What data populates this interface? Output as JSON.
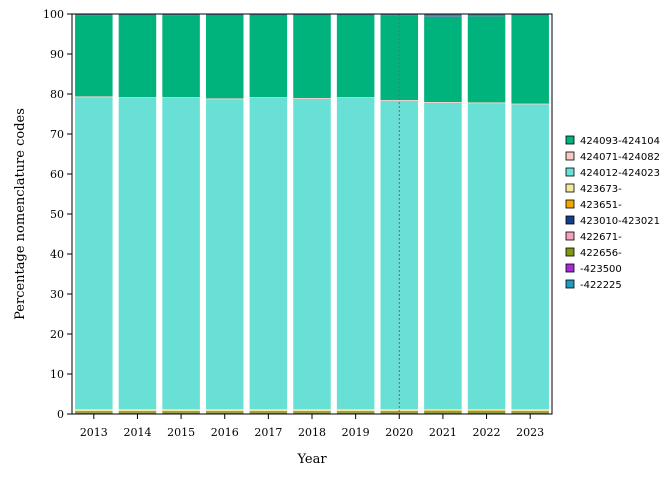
{
  "chart_data": {
    "type": "bar",
    "stacked": true,
    "xlabel": "Year",
    "ylabel": "Percentage nomenclature codes",
    "ylim": [
      0,
      100
    ],
    "yticks": [
      0,
      10,
      20,
      30,
      40,
      50,
      60,
      70,
      80,
      90,
      100
    ],
    "categories": [
      "2013",
      "2014",
      "2015",
      "2016",
      "2017",
      "2018",
      "2019",
      "2020",
      "2021",
      "2022",
      "2023"
    ],
    "reference_line": {
      "category": "2020",
      "style": "dotted"
    },
    "grid": false,
    "legend_position": "right",
    "series": [
      {
        "name": "-422225",
        "color": "#1f9bbf",
        "values": [
          0.2,
          0.2,
          0.2,
          0.2,
          0.2,
          0.2,
          0.2,
          0.2,
          0.2,
          0.2,
          0.2
        ]
      },
      {
        "name": "-423500",
        "color": "#a62bd6",
        "values": [
          0.1,
          0.1,
          0.1,
          0.1,
          0.1,
          0.1,
          0.1,
          0.1,
          0.1,
          0.1,
          0.1
        ]
      },
      {
        "name": "422656-",
        "color": "#7f9a10",
        "values": [
          0.2,
          0.2,
          0.2,
          0.2,
          0.2,
          0.2,
          0.2,
          0.2,
          0.3,
          0.3,
          0.2
        ]
      },
      {
        "name": "422671-",
        "color": "#f5a0c0",
        "values": [
          0.1,
          0.1,
          0.1,
          0.1,
          0.1,
          0.1,
          0.1,
          0.1,
          0.1,
          0.1,
          0.1
        ]
      },
      {
        "name": "423010-423021",
        "color": "#123f8c",
        "values": [
          0.1,
          0.1,
          0.1,
          0.1,
          0.1,
          0.1,
          0.1,
          0.1,
          0.1,
          0.1,
          0.1
        ]
      },
      {
        "name": "423651-",
        "color": "#f0a800",
        "values": [
          0.1,
          0.1,
          0.1,
          0.1,
          0.1,
          0.1,
          0.1,
          0.1,
          0.1,
          0.1,
          0.1
        ]
      },
      {
        "name": "423673-",
        "color": "#f6e89a",
        "values": [
          0.4,
          0.4,
          0.4,
          0.4,
          0.4,
          0.4,
          0.4,
          0.4,
          0.3,
          0.3,
          0.4
        ]
      },
      {
        "name": "424012-424023",
        "color": "#68e0d5",
        "values": [
          78.0,
          77.8,
          77.8,
          77.5,
          77.8,
          77.6,
          77.8,
          77.1,
          76.6,
          76.5,
          76.2
        ]
      },
      {
        "name": "424071-424082",
        "color": "#f7c8c4",
        "values": [
          0.2,
          0.2,
          0.2,
          0.2,
          0.2,
          0.2,
          0.2,
          0.2,
          0.2,
          0.2,
          0.2
        ]
      },
      {
        "name": "424093-424104",
        "color": "#00b27b",
        "values": [
          20.2,
          20.3,
          20.4,
          20.6,
          20.3,
          20.5,
          20.3,
          21.1,
          21.3,
          21.5,
          21.9
        ]
      }
    ],
    "top_color": "#4f7fa0"
  }
}
